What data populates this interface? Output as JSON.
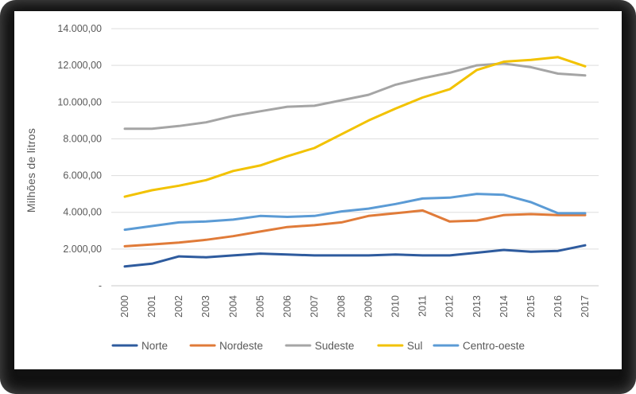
{
  "chart_data": {
    "type": "line",
    "title": "",
    "xlabel": "",
    "ylabel": "Milhões de litros",
    "ylim": [
      0,
      14000
    ],
    "grid": true,
    "legend_position": "bottom",
    "categories": [
      "2000",
      "2001",
      "2002",
      "2003",
      "2004",
      "2005",
      "2006",
      "2007",
      "2008",
      "2009",
      "2010",
      "2011",
      "2012",
      "2013",
      "2014",
      "2015",
      "2016",
      "2017"
    ],
    "y_ticks": [
      {
        "value": 0,
        "label": "-"
      },
      {
        "value": 2000,
        "label": "2.000,00"
      },
      {
        "value": 4000,
        "label": "4.000,00"
      },
      {
        "value": 6000,
        "label": "6.000,00"
      },
      {
        "value": 8000,
        "label": "8.000,00"
      },
      {
        "value": 10000,
        "label": "10.000,00"
      },
      {
        "value": 12000,
        "label": "12.000,00"
      },
      {
        "value": 14000,
        "label": "14.000,00"
      }
    ],
    "series": [
      {
        "name": "Norte",
        "color": "#2E5B9E",
        "values": [
          1050,
          1200,
          1600,
          1550,
          1650,
          1750,
          1700,
          1650,
          1650,
          1650,
          1700,
          1650,
          1650,
          1800,
          1950,
          1850,
          1900,
          2200
        ]
      },
      {
        "name": "Nordeste",
        "color": "#E07B39",
        "values": [
          2150,
          2250,
          2350,
          2500,
          2700,
          2950,
          3200,
          3300,
          3450,
          3800,
          3950,
          4100,
          3500,
          3550,
          3850,
          3900,
          3850,
          3850
        ]
      },
      {
        "name": "Sudeste",
        "color": "#A5A5A5",
        "values": [
          8550,
          8550,
          8700,
          8900,
          9250,
          9500,
          9750,
          9800,
          10100,
          10400,
          10950,
          11300,
          11600,
          12000,
          12100,
          11900,
          11550,
          11450
        ]
      },
      {
        "name": "Sul",
        "color": "#F2C200",
        "values": [
          4850,
          5200,
          5450,
          5750,
          6250,
          6550,
          7050,
          7500,
          8250,
          9000,
          9650,
          10250,
          10700,
          11750,
          12200,
          12300,
          12450,
          11950
        ]
      },
      {
        "name": "Centro-oeste",
        "color": "#5B9BD5",
        "values": [
          3050,
          3250,
          3450,
          3500,
          3600,
          3800,
          3750,
          3800,
          4050,
          4200,
          4450,
          4750,
          4800,
          5000,
          4950,
          4550,
          3950,
          3950
        ]
      }
    ]
  }
}
